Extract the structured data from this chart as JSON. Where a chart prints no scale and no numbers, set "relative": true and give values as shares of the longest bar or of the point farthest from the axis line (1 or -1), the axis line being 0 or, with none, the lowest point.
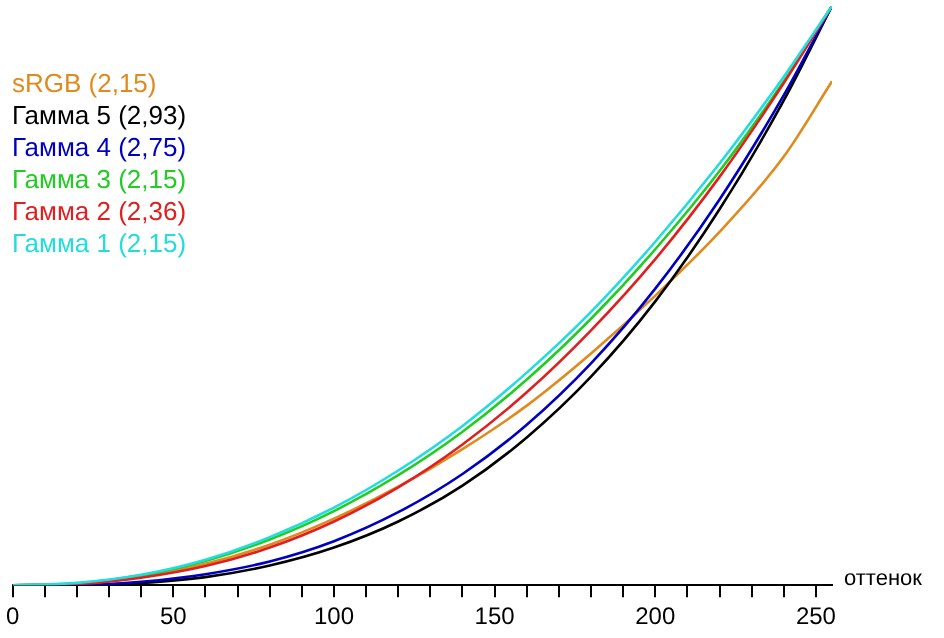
{
  "chart_data": {
    "type": "line",
    "relative": true,
    "xlabel": "оттенок",
    "x": [
      0,
      20,
      40,
      60,
      80,
      100,
      120,
      140,
      160,
      180,
      200,
      220,
      240,
      255
    ],
    "xlim": [
      0,
      255
    ],
    "xticks": [
      0,
      {
        "value": 10,
        "label": null
      },
      {
        "value": 20,
        "label": null
      },
      {
        "value": 30,
        "label": null
      },
      {
        "value": 40,
        "label": null
      },
      50,
      {
        "value": 60,
        "label": null
      },
      {
        "value": 70,
        "label": null
      },
      {
        "value": 80,
        "label": null
      },
      {
        "value": 90,
        "label": null
      },
      100,
      {
        "value": 110,
        "label": null
      },
      {
        "value": 120,
        "label": null
      },
      {
        "value": 130,
        "label": null
      },
      {
        "value": 140,
        "label": null
      },
      150,
      {
        "value": 160,
        "label": null
      },
      {
        "value": 170,
        "label": null
      },
      {
        "value": 180,
        "label": null
      },
      {
        "value": 190,
        "label": null
      },
      200,
      {
        "value": 210,
        "label": null
      },
      {
        "value": 220,
        "label": null
      },
      {
        "value": 230,
        "label": null
      },
      {
        "value": 240,
        "label": null
      },
      250
    ],
    "grid": false,
    "legend": "left",
    "marker": "none",
    "line_style": "solid",
    "series": [
      {
        "name": "sRGB (2,15)",
        "color": "#e08a1e",
        "values": [
          0,
          0.003,
          0.015,
          0.037,
          0.07,
          0.115,
          0.17,
          0.235,
          0.31,
          0.4,
          0.5,
          0.61,
          0.74,
          0.87
        ]
      },
      {
        "name": "Гамма 5 (2,93)",
        "color": "#000000",
        "values": [
          0,
          0,
          0.004,
          0.014,
          0.034,
          0.065,
          0.11,
          0.172,
          0.255,
          0.36,
          0.49,
          0.649,
          0.837,
          1
        ]
      },
      {
        "name": "Гамма 4 (2,75)",
        "color": "#0000c0",
        "values": [
          0,
          0,
          0.006,
          0.019,
          0.041,
          0.076,
          0.126,
          0.192,
          0.277,
          0.383,
          0.512,
          0.666,
          0.846,
          1
        ]
      },
      {
        "name": "Гамма 3 (2,15)",
        "color": "#22cc22",
        "values": [
          0,
          0.003,
          0.017,
          0.042,
          0.079,
          0.128,
          0.19,
          0.265,
          0.355,
          0.46,
          0.58,
          0.715,
          0.87,
          1
        ]
      },
      {
        "name": "Гамма 2 (2,36)",
        "color": "#e02020",
        "values": [
          0,
          0.002,
          0.013,
          0.033,
          0.065,
          0.11,
          0.169,
          0.243,
          0.333,
          0.44,
          0.563,
          0.705,
          0.867,
          1
        ]
      },
      {
        "name": "Гамма 1 (2,15)",
        "color": "#22dddd",
        "values": [
          0,
          0.004,
          0.018,
          0.044,
          0.083,
          0.134,
          0.198,
          0.275,
          0.367,
          0.472,
          0.593,
          0.728,
          0.878,
          1
        ]
      }
    ]
  }
}
